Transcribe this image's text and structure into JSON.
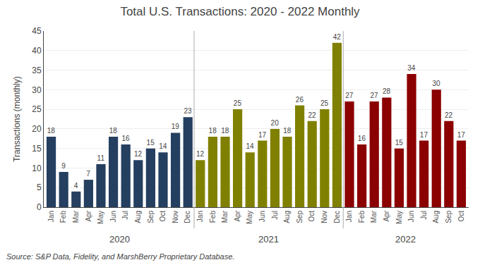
{
  "chart_data": {
    "type": "bar",
    "title": "Total U.S. Transactions: 2020 - 2022 Monthly",
    "ylabel": "Transactions (monthly)",
    "annotations": [
      "Source: S&P Data, Fidelity, and MarshBerry Proprietary Database."
    ],
    "categories": [
      "Jan",
      "Feb",
      "Mar",
      "Apr",
      "May",
      "Jun",
      "Jul",
      "Aug",
      "Sep",
      "Oct",
      "Nov",
      "Dec",
      "Jan",
      "Feb",
      "Mar",
      "Apr",
      "May",
      "Jun",
      "Jul",
      "Aug",
      "Sep",
      "Oct",
      "Nov",
      "Dec",
      "Jan",
      "Feb",
      "Mar",
      "Apr",
      "May",
      "Jun",
      "Jul",
      "Aug",
      "Sep",
      "Oct"
    ],
    "series": [
      {
        "name": "2020",
        "color": "#243F60",
        "values": [
          18,
          9,
          4,
          7,
          11,
          18,
          16,
          12,
          15,
          14,
          19,
          23,
          null,
          null,
          null,
          null,
          null,
          null,
          null,
          null,
          null,
          null,
          null,
          null,
          null,
          null,
          null,
          null,
          null,
          null,
          null,
          null,
          null,
          null
        ]
      },
      {
        "name": "2021",
        "color": "#808000",
        "values": [
          null,
          null,
          null,
          null,
          null,
          null,
          null,
          null,
          null,
          null,
          null,
          null,
          12,
          18,
          18,
          25,
          14,
          17,
          20,
          18,
          26,
          22,
          25,
          42,
          null,
          null,
          null,
          null,
          null,
          null,
          null,
          null,
          null,
          null
        ]
      },
      {
        "name": "2022",
        "color": "#8B0000",
        "values": [
          null,
          null,
          null,
          null,
          null,
          null,
          null,
          null,
          null,
          null,
          null,
          null,
          null,
          null,
          null,
          null,
          null,
          null,
          null,
          null,
          null,
          null,
          null,
          null,
          27,
          16,
          27,
          28,
          15,
          34,
          17,
          30,
          22,
          17
        ]
      }
    ],
    "ylim": [
      0,
      45
    ],
    "yticks": [
      0,
      5,
      10,
      15,
      20,
      25,
      30,
      35,
      40,
      45
    ],
    "grid": true,
    "data_labels": true
  }
}
